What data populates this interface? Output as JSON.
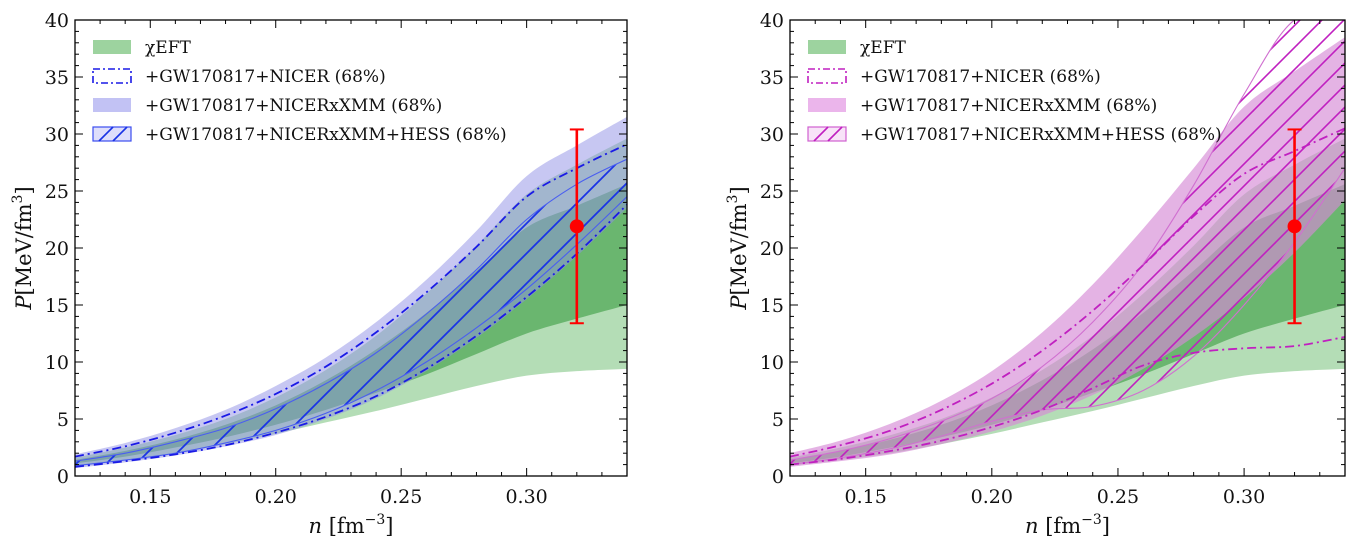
{
  "chart_data": [
    {
      "type": "area",
      "panel": "left",
      "xlabel_var": "n",
      "xlabel_unit": "[fm",
      "xlabel_exp": "−3",
      "ylabel_var": "P",
      "ylabel_unit": "[MeV/fm",
      "ylabel_exp": "3",
      "xlim": [
        0.12,
        0.34
      ],
      "ylim": [
        0,
        40
      ],
      "xticks": [
        0.15,
        0.2,
        0.25,
        0.3
      ],
      "xtick_labels": [
        "0.15",
        "0.20",
        "0.25",
        "0.30"
      ],
      "yticks": [
        0,
        5,
        10,
        15,
        20,
        25,
        30,
        35,
        40
      ],
      "ytick_labels": [
        "0",
        "5",
        "10",
        "15",
        "20",
        "25",
        "30",
        "35",
        "40"
      ],
      "legend_position": "top-left",
      "legend": [
        {
          "label": "χEFT",
          "style": "fill",
          "color": "#4caf50"
        },
        {
          "label": "+GW170817+NICER (68%)",
          "style": "dashdot",
          "color": "#1a1ae6"
        },
        {
          "label": "+GW170817+NICERxXMM (68%)",
          "style": "fill",
          "color": "#a8a8f0"
        },
        {
          "label": "+GW170817+NICERxXMM+HESS (68%)",
          "style": "hatch",
          "color": "#1a33e6"
        }
      ],
      "x": [
        0.12,
        0.14,
        0.16,
        0.18,
        0.2,
        0.22,
        0.24,
        0.26,
        0.28,
        0.3,
        0.32,
        0.34
      ],
      "series": [
        {
          "name": "chiEFT_outer",
          "lower": [
            0.9,
            1.4,
            2.0,
            2.8,
            3.7,
            4.7,
            5.7,
            6.8,
            7.9,
            8.8,
            9.2,
            9.4
          ],
          "upper": [
            1.6,
            2.5,
            3.6,
            5.0,
            6.9,
            9.3,
            12.3,
            16.0,
            20.2,
            24.7,
            27.3,
            29.6
          ]
        },
        {
          "name": "chiEFT_inner",
          "lower": [
            1.1,
            1.7,
            2.5,
            3.4,
            4.5,
            5.8,
            7.3,
            8.9,
            10.7,
            12.5,
            13.8,
            15.0
          ],
          "upper": [
            1.4,
            2.2,
            3.2,
            4.5,
            6.2,
            8.4,
            11.1,
            14.3,
            18.0,
            21.8,
            23.7,
            25.6
          ]
        },
        {
          "name": "NICERxXMM",
          "lower": [
            0.7,
            1.2,
            1.8,
            2.6,
            3.6,
            5.0,
            6.8,
            9.2,
            12.1,
            15.5,
            19.3,
            23.5
          ],
          "upper": [
            1.9,
            2.9,
            4.2,
            5.8,
            7.9,
            10.4,
            13.5,
            17.2,
            21.5,
            26.3,
            29.0,
            31.5
          ]
        },
        {
          "name": "NICER_dashdot",
          "lower": [
            0.8,
            1.3,
            1.9,
            2.7,
            3.8,
            5.2,
            7.0,
            9.4,
            12.3,
            15.7,
            19.5,
            23.8
          ],
          "upper": [
            1.7,
            2.6,
            3.8,
            5.3,
            7.2,
            9.6,
            12.6,
            16.1,
            20.1,
            24.5,
            27.0,
            29.1
          ]
        },
        {
          "name": "HESS_hatch",
          "lower": [
            0.9,
            1.4,
            2.0,
            2.9,
            4.0,
            5.5,
            7.5,
            10.0,
            13.0,
            16.4,
            20.3,
            24.5
          ],
          "upper": [
            1.3,
            2.0,
            3.0,
            4.2,
            5.9,
            8.1,
            10.8,
            14.2,
            18.1,
            22.5,
            25.6,
            27.8
          ]
        }
      ],
      "errorbar": {
        "x": 0.32,
        "y": 21.9,
        "ylow": 13.4,
        "yhigh": 30.4,
        "color": "#ff0000"
      }
    },
    {
      "type": "area",
      "panel": "right",
      "xlabel_var": "n",
      "xlabel_unit": "[fm",
      "xlabel_exp": "−3",
      "ylabel_var": "P",
      "ylabel_unit": "[MeV/fm",
      "ylabel_exp": "3",
      "xlim": [
        0.12,
        0.34
      ],
      "ylim": [
        0,
        40
      ],
      "xticks": [
        0.15,
        0.2,
        0.25,
        0.3
      ],
      "xtick_labels": [
        "0.15",
        "0.20",
        "0.25",
        "0.30"
      ],
      "yticks": [
        0,
        5,
        10,
        15,
        20,
        25,
        30,
        35,
        40
      ],
      "ytick_labels": [
        "0",
        "5",
        "10",
        "15",
        "20",
        "25",
        "30",
        "35",
        "40"
      ],
      "legend_position": "top-left",
      "legend": [
        {
          "label": "χEFT",
          "style": "fill",
          "color": "#4caf50"
        },
        {
          "label": "+GW170817+NICER (68%)",
          "style": "dashdot",
          "color": "#c020c0"
        },
        {
          "label": "+GW170817+NICERxXMM (68%)",
          "style": "fill",
          "color": "#e8a8e8"
        },
        {
          "label": "+GW170817+NICERxXMM+HESS (68%)",
          "style": "hatch",
          "color": "#c020c0"
        }
      ],
      "x": [
        0.12,
        0.14,
        0.16,
        0.18,
        0.2,
        0.22,
        0.24,
        0.26,
        0.28,
        0.3,
        0.32,
        0.34
      ],
      "series": [
        {
          "name": "chiEFT_outer",
          "lower": [
            0.9,
            1.4,
            2.0,
            2.8,
            3.7,
            4.7,
            5.7,
            6.8,
            7.9,
            8.8,
            9.2,
            9.4
          ],
          "upper": [
            1.6,
            2.5,
            3.6,
            5.0,
            6.9,
            9.3,
            12.3,
            16.0,
            20.2,
            24.7,
            27.3,
            29.6
          ]
        },
        {
          "name": "chiEFT_inner",
          "lower": [
            1.1,
            1.7,
            2.5,
            3.4,
            4.5,
            5.8,
            7.3,
            8.9,
            10.7,
            12.5,
            13.8,
            15.0
          ],
          "upper": [
            1.4,
            2.2,
            3.2,
            4.5,
            6.2,
            8.4,
            11.1,
            14.3,
            18.0,
            21.8,
            23.7,
            25.6
          ]
        },
        {
          "name": "NICERxXMM",
          "lower": [
            0.8,
            1.3,
            1.9,
            2.8,
            3.9,
            5.3,
            7.1,
            9.4,
            12.2,
            15.6,
            19.6,
            24.2
          ],
          "upper": [
            2.0,
            3.1,
            4.6,
            6.6,
            9.2,
            12.6,
            16.8,
            21.7,
            27.0,
            32.4,
            35.5,
            38.5
          ]
        },
        {
          "name": "NICER_dashdot",
          "lower": [
            1.0,
            1.5,
            2.2,
            3.1,
            4.3,
            5.8,
            7.7,
            9.7,
            10.8,
            11.2,
            11.4,
            12.2
          ],
          "upper": [
            1.7,
            2.7,
            4.0,
            5.8,
            8.1,
            11.0,
            14.5,
            18.5,
            22.8,
            26.5,
            28.5,
            30.5
          ]
        },
        {
          "name": "HESS_hatch",
          "lower": [
            1.0,
            1.6,
            2.4,
            3.5,
            4.8,
            5.8,
            6.1,
            7.5,
            10.5,
            15.0,
            20.5,
            27.0
          ],
          "upper": [
            1.4,
            2.2,
            3.3,
            4.8,
            6.8,
            9.6,
            13.5,
            18.6,
            25.5,
            33.5,
            40.0,
            40.0
          ]
        }
      ],
      "errorbar": {
        "x": 0.32,
        "y": 21.9,
        "ylow": 13.4,
        "yhigh": 30.4,
        "color": "#ff0000"
      }
    }
  ]
}
